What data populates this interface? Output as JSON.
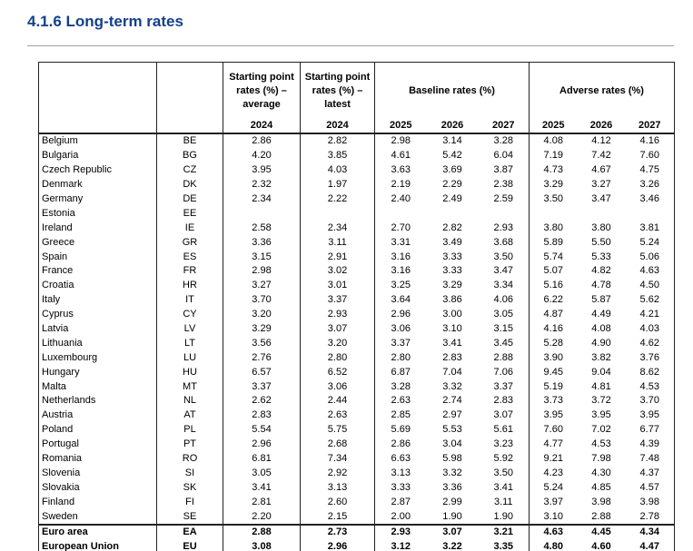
{
  "title": "4.1.6 Long-term rates",
  "table": {
    "header_top": [
      "Starting point rates (%) – average",
      "Starting point rates (%) – latest",
      "Baseline rates (%)",
      "Adverse rates (%)"
    ],
    "years": [
      "2024",
      "2024",
      "2025",
      "2026",
      "2027",
      "2025",
      "2026",
      "2027"
    ],
    "rows": [
      [
        "Belgium",
        "BE",
        "2.86",
        "2.82",
        "2.98",
        "3.14",
        "3.28",
        "4.08",
        "4.12",
        "4.16"
      ],
      [
        "Bulgaria",
        "BG",
        "4.20",
        "3.85",
        "4.61",
        "5.42",
        "6.04",
        "7.19",
        "7.42",
        "7.60"
      ],
      [
        "Czech Republic",
        "CZ",
        "3.95",
        "4.03",
        "3.63",
        "3.69",
        "3.87",
        "4.73",
        "4.67",
        "4.75"
      ],
      [
        "Denmark",
        "DK",
        "2.32",
        "1.97",
        "2.19",
        "2.29",
        "2.38",
        "3.29",
        "3.27",
        "3.26"
      ],
      [
        "Germany",
        "DE",
        "2.34",
        "2.22",
        "2.40",
        "2.49",
        "2.59",
        "3.50",
        "3.47",
        "3.46"
      ],
      [
        "Estonia",
        "EE",
        null,
        null,
        null,
        null,
        null,
        null,
        null,
        null
      ],
      [
        "Ireland",
        "IE",
        "2.58",
        "2.34",
        "2.70",
        "2.82",
        "2.93",
        "3.80",
        "3.80",
        "3.81"
      ],
      [
        "Greece",
        "GR",
        "3.36",
        "3.11",
        "3.31",
        "3.49",
        "3.68",
        "5.89",
        "5.50",
        "5.24"
      ],
      [
        "Spain",
        "ES",
        "3.15",
        "2.91",
        "3.16",
        "3.33",
        "3.50",
        "5.74",
        "5.33",
        "5.06"
      ],
      [
        "France",
        "FR",
        "2.98",
        "3.02",
        "3.16",
        "3.33",
        "3.47",
        "5.07",
        "4.82",
        "4.63"
      ],
      [
        "Croatia",
        "HR",
        "3.27",
        "3.01",
        "3.25",
        "3.29",
        "3.34",
        "5.16",
        "4.78",
        "4.50"
      ],
      [
        "Italy",
        "IT",
        "3.70",
        "3.37",
        "3.64",
        "3.86",
        "4.06",
        "6.22",
        "5.87",
        "5.62"
      ],
      [
        "Cyprus",
        "CY",
        "3.20",
        "2.93",
        "2.96",
        "3.00",
        "3.05",
        "4.87",
        "4.49",
        "4.21"
      ],
      [
        "Latvia",
        "LV",
        "3.29",
        "3.07",
        "3.06",
        "3.10",
        "3.15",
        "4.16",
        "4.08",
        "4.03"
      ],
      [
        "Lithuania",
        "LT",
        "3.56",
        "3.20",
        "3.37",
        "3.41",
        "3.45",
        "5.28",
        "4.90",
        "4.62"
      ],
      [
        "Luxembourg",
        "LU",
        "2.76",
        "2.80",
        "2.80",
        "2.83",
        "2.88",
        "3.90",
        "3.82",
        "3.76"
      ],
      [
        "Hungary",
        "HU",
        "6.57",
        "6.52",
        "6.87",
        "7.04",
        "7.06",
        "9.45",
        "9.04",
        "8.62"
      ],
      [
        "Malta",
        "MT",
        "3.37",
        "3.06",
        "3.28",
        "3.32",
        "3.37",
        "5.19",
        "4.81",
        "4.53"
      ],
      [
        "Netherlands",
        "NL",
        "2.62",
        "2.44",
        "2.63",
        "2.74",
        "2.83",
        "3.73",
        "3.72",
        "3.70"
      ],
      [
        "Austria",
        "AT",
        "2.83",
        "2.63",
        "2.85",
        "2.97",
        "3.07",
        "3.95",
        "3.95",
        "3.95"
      ],
      [
        "Poland",
        "PL",
        "5.54",
        "5.75",
        "5.69",
        "5.53",
        "5.61",
        "7.60",
        "7.02",
        "6.77"
      ],
      [
        "Portugal",
        "PT",
        "2.96",
        "2.68",
        "2.86",
        "3.04",
        "3.23",
        "4.77",
        "4.53",
        "4.39"
      ],
      [
        "Romania",
        "RO",
        "6.81",
        "7.34",
        "6.63",
        "5.98",
        "5.92",
        "9.21",
        "7.98",
        "7.48"
      ],
      [
        "Slovenia",
        "SI",
        "3.05",
        "2.92",
        "3.13",
        "3.32",
        "3.50",
        "4.23",
        "4.30",
        "4.37"
      ],
      [
        "Slovakia",
        "SK",
        "3.41",
        "3.13",
        "3.33",
        "3.36",
        "3.41",
        "5.24",
        "4.85",
        "4.57"
      ],
      [
        "Finland",
        "FI",
        "2.81",
        "2.60",
        "2.87",
        "2.99",
        "3.11",
        "3.97",
        "3.98",
        "3.98"
      ],
      [
        "Sweden",
        "SE",
        "2.20",
        "2.15",
        "2.00",
        "1.90",
        "1.90",
        "3.10",
        "2.88",
        "2.78"
      ],
      [
        "Euro area",
        "EA",
        "2.88",
        "2.73",
        "2.93",
        "3.07",
        "3.21",
        "4.63",
        "4.45",
        "4.34"
      ],
      [
        "European Union",
        "EU",
        "3.08",
        "2.96",
        "3.12",
        "3.22",
        "3.35",
        "4.80",
        "4.60",
        "4.47"
      ]
    ]
  }
}
